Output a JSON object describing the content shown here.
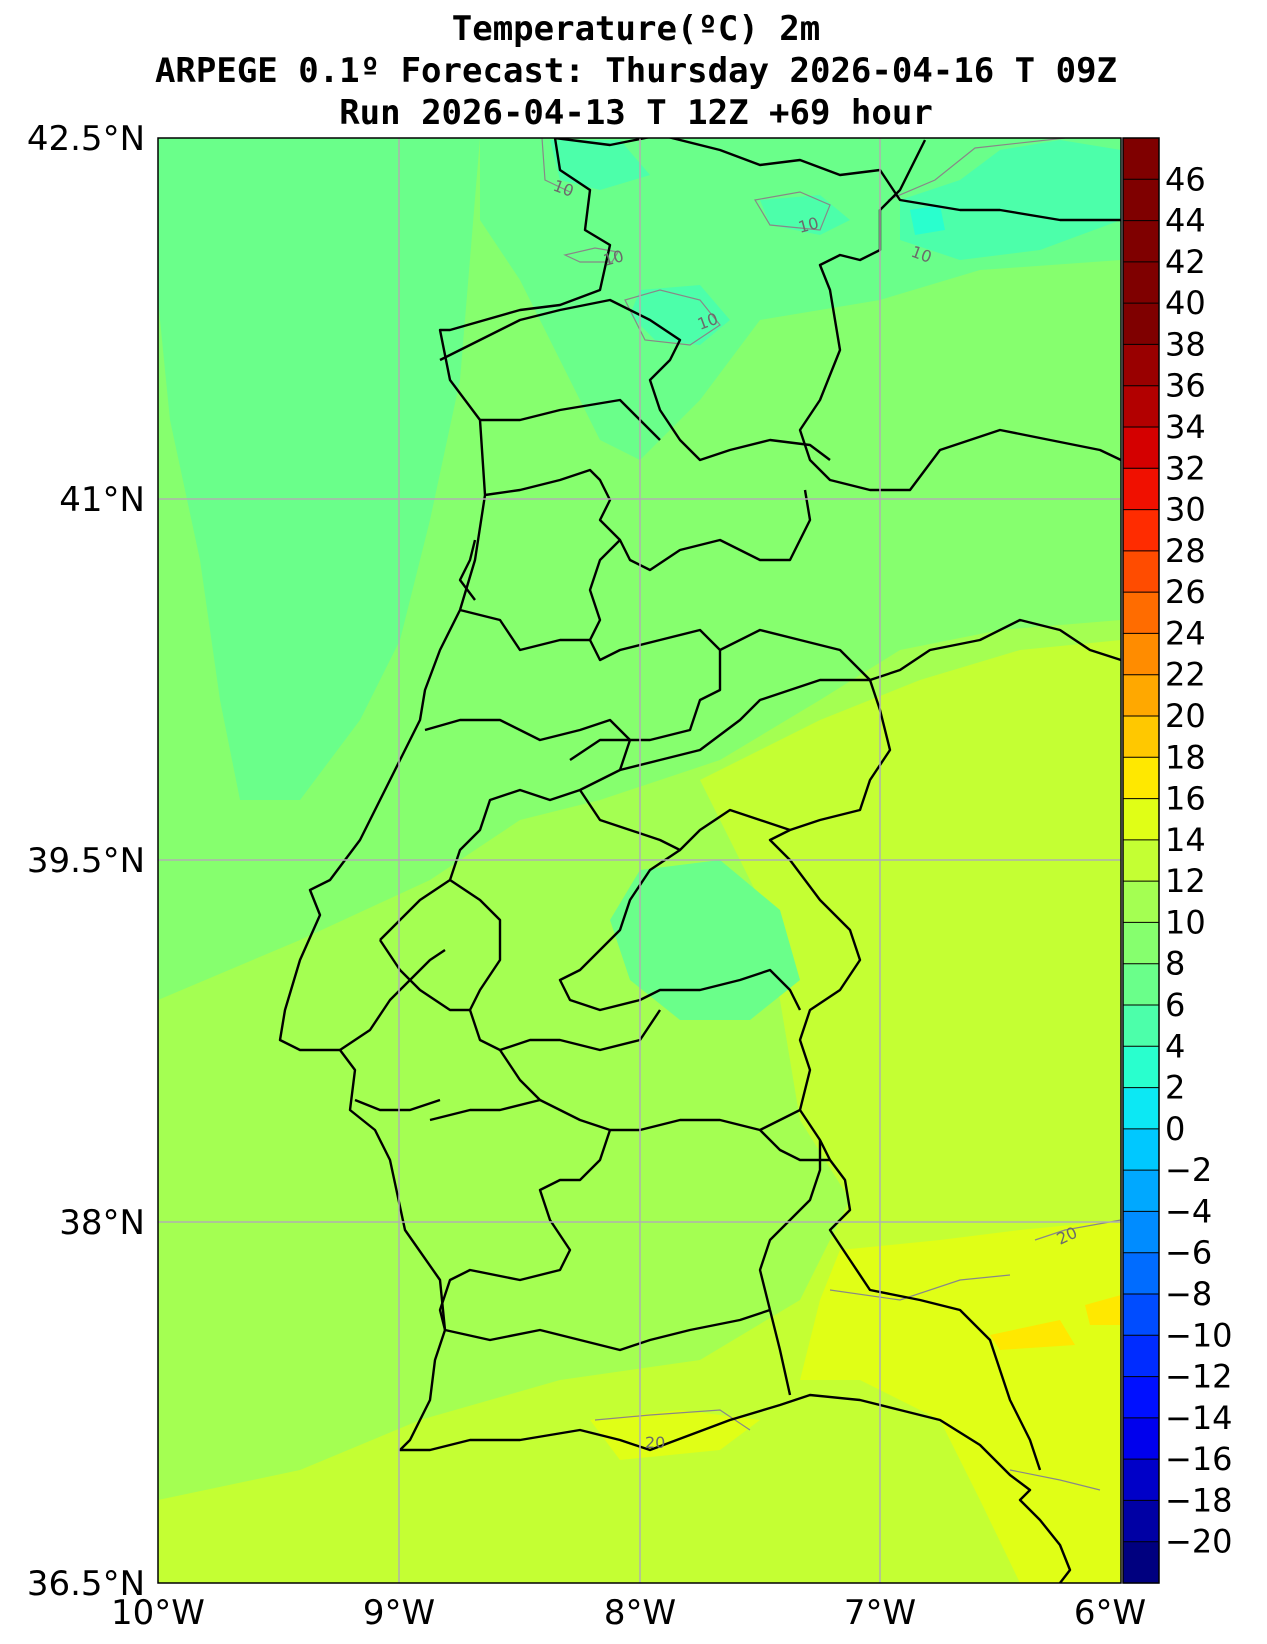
{
  "title": {
    "line1": "Temperature(ºC) 2m",
    "line2": "ARPEGE 0.1º Forecast: Thursday 2026-04-16 T 09Z",
    "line3": "Run 2026-04-13 T 12Z +69 hour"
  },
  "axes": {
    "lat_ticks": [
      "42.5°N",
      "41°N",
      "39.5°N",
      "38°N",
      "36.5°N"
    ],
    "lon_ticks": [
      "10°W",
      "9°W",
      "8°W",
      "7°W",
      "6°W"
    ],
    "lat_range": [
      36.5,
      42.5
    ],
    "lon_range": [
      -10,
      -6
    ],
    "grid": true
  },
  "colorbar": {
    "labels": [
      "46",
      "44",
      "42",
      "40",
      "38",
      "36",
      "34",
      "32",
      "30",
      "28",
      "26",
      "24",
      "22",
      "20",
      "18",
      "16",
      "14",
      "12",
      "10",
      "8",
      "6",
      "4",
      "2",
      "0",
      "−2",
      "−4",
      "−6",
      "−8",
      "−10",
      "−12",
      "−14",
      "−16",
      "−18",
      "−20"
    ],
    "min": -22,
    "max": 48,
    "step": 2,
    "colors": [
      "#00007f",
      "#0000a4",
      "#0000c8",
      "#0000ed",
      "#0010ff",
      "#002cff",
      "#004cff",
      "#006cff",
      "#008cff",
      "#00a8ff",
      "#00c8ff",
      "#0ce8f4",
      "#29ffce",
      "#4cffaa",
      "#6aff8a",
      "#86ff6e",
      "#a4ff52",
      "#c4ff33",
      "#e0ff16",
      "#ffe800",
      "#ffc800",
      "#ffa800",
      "#ff8c00",
      "#ff6c00",
      "#ff4c00",
      "#ff2c00",
      "#f01000",
      "#d40000",
      "#b20000",
      "#990000",
      "#7f0000",
      "#7f0000",
      "#7f0000",
      "#7f0000",
      "#7f0000"
    ]
  },
  "contour_labels": [
    "10",
    "10",
    "10",
    "10",
    "10",
    "20",
    "20"
  ],
  "field_colors": {
    "sea": "#86ff6e",
    "cool_patch": "#6aff8a",
    "cold_patch": "#4cffaa",
    "mild": "#a4ff52",
    "warm": "#c4ff33",
    "hot": "#e0ff16",
    "hottest": "#ffe800"
  }
}
